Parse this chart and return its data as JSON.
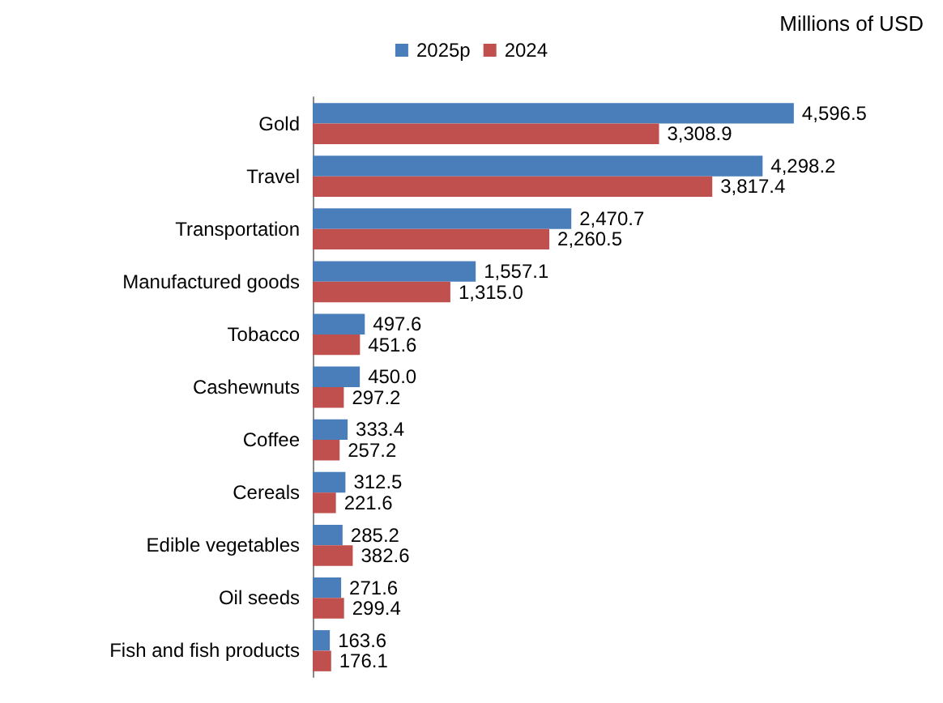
{
  "chart_data": {
    "type": "bar",
    "orientation": "horizontal",
    "annotations": [
      "Millions of USD"
    ],
    "categories": [
      "Gold",
      "Travel",
      "Transportation",
      "Manufactured goods",
      "Tobacco",
      "Cashewnuts",
      "Coffee",
      "Cereals",
      "Edible vegetables",
      "Oil seeds",
      "Fish and fish products"
    ],
    "series": [
      {
        "name": "2025p",
        "color": "#4a7ebb",
        "values": [
          4596.5,
          4298.2,
          2470.7,
          1557.1,
          497.6,
          450.0,
          333.4,
          312.5,
          285.2,
          271.6,
          163.6
        ],
        "value_labels": [
          "4,596.5",
          "4,298.2",
          "2,470.7",
          "1,557.1",
          "497.6",
          "450.0",
          "333.4",
          "312.5",
          "285.2",
          "271.6",
          "163.6"
        ]
      },
      {
        "name": "2024",
        "color": "#c0504d",
        "values": [
          3308.9,
          3817.4,
          2260.5,
          1315.0,
          451.6,
          297.2,
          257.2,
          221.6,
          382.6,
          299.4,
          176.1
        ],
        "value_labels": [
          "3,308.9",
          "3,817.4",
          "2,260.5",
          "1,315.0",
          "451.6",
          "297.2",
          "257.2",
          "221.6",
          "382.6",
          "299.4",
          "176.1"
        ]
      }
    ],
    "legend": "top"
  }
}
